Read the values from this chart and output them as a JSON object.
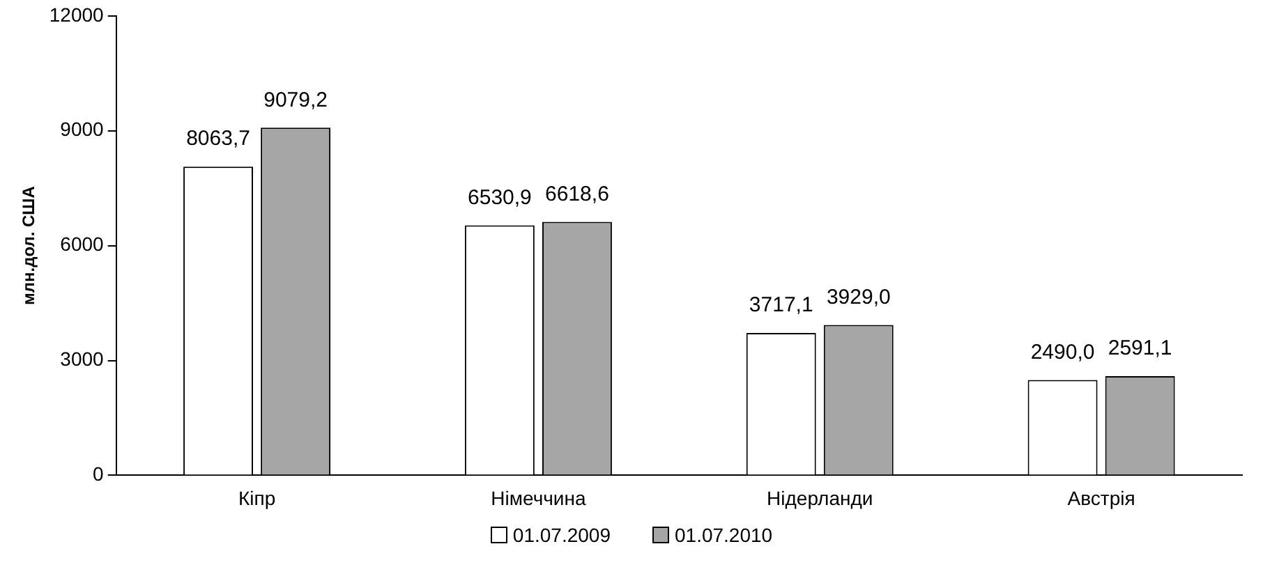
{
  "chart_data": {
    "type": "bar",
    "ylabel": "млн.дол. США",
    "categories": [
      "Кіпр",
      "Німеччина",
      "Нідерланди",
      "Австрія"
    ],
    "series": [
      {
        "name": "01.07.2009",
        "color": "#ffffff",
        "values": [
          8063.7,
          6530.9,
          3717.1,
          2490.0
        ],
        "value_labels": [
          "8063,7",
          "6530,9",
          "3717,1",
          "2490,0"
        ]
      },
      {
        "name": "01.07.2010",
        "color": "#a6a6a6",
        "values": [
          9079.2,
          6618.6,
          3929.0,
          2591.1
        ],
        "value_labels": [
          "9079,2",
          "6618,6",
          "3929,0",
          "2591,1"
        ]
      }
    ],
    "ylim": [
      0,
      12000
    ],
    "yticks": [
      0,
      3000,
      6000,
      9000,
      12000
    ],
    "grid": false,
    "legend": "bottom"
  }
}
